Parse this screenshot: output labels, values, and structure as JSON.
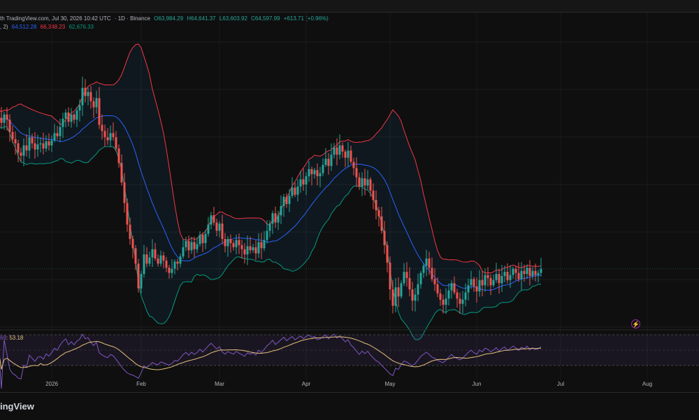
{
  "header": {
    "line1": {
      "source": "th TradingView.com, Jul 30, 2026 10:42 UTC",
      "symbol": "· 1D · Binance",
      "open": "O63,984.29",
      "high": "H64,641.37",
      "low": "L63,603.92",
      "close": "C64,597.99",
      "change": "+613.71 (+0.96%)"
    },
    "line2": {
      "params": ", 2)",
      "basis": "64,512.28",
      "upper": "66,348.23",
      "lower": "62,676.33"
    }
  },
  "rsi_legend": {
    "value_a": "69",
    "value_b": "53.18"
  },
  "footer": {
    "logo": "ingView"
  },
  "colors": {
    "up": "#26a69a",
    "down": "#ef5350",
    "basis": "#2962ff",
    "upper": "#f23645",
    "lower": "#089981",
    "rsi": "#7e57c2",
    "rsi_ma": "#e5c07b"
  },
  "chart_data": {
    "type": "candlestick",
    "x_ticks": [
      "2026",
      "Feb",
      "Mar",
      "Apr",
      "May",
      "Jun",
      "Jul",
      "Aug"
    ],
    "x_tick_index": [
      19,
      51,
      79,
      110,
      140,
      171,
      201,
      232
    ],
    "indicators": [
      "Bollinger Bands",
      "RSI"
    ],
    "rsi_range": [
      0,
      100
    ],
    "rsi_bands": [
      30,
      70
    ],
    "price_range": [
      54000,
      82000
    ],
    "closes": [
      74500,
      74000,
      74800,
      74300,
      73100,
      72400,
      72000,
      71100,
      70800,
      71800,
      71300,
      72600,
      72000,
      71400,
      71900,
      72000,
      71500,
      72200,
      71800,
      72300,
      73000,
      72700,
      73600,
      74400,
      75000,
      74100,
      74800,
      74300,
      75200,
      75700,
      77400,
      76600,
      77000,
      76100,
      75500,
      76400,
      73800,
      73200,
      72600,
      72300,
      73000,
      72600,
      71500,
      70100,
      68200,
      66200,
      64100,
      62700,
      61800,
      60300,
      57900,
      59300,
      61200,
      60300,
      60900,
      61700,
      60800,
      60300,
      61100,
      60600,
      59900,
      59400,
      59800,
      60500,
      60300,
      61000,
      61900,
      62500,
      61600,
      62400,
      61700,
      62200,
      63100,
      62300,
      63200,
      64100,
      65000,
      64300,
      63500,
      64200,
      62700,
      62000,
      62700,
      62300,
      61900,
      62600,
      62100,
      61700,
      61200,
      62000,
      61600,
      61900,
      61300,
      62400,
      61800,
      62600,
      63500,
      64200,
      65200,
      64300,
      65000,
      65900,
      66800,
      66100,
      66900,
      67700,
      67000,
      67800,
      68500,
      68000,
      68800,
      69500,
      69000,
      69400,
      68800,
      69100,
      69900,
      70500,
      69800,
      70900,
      71600,
      70900,
      71800,
      71200,
      70600,
      71300,
      70200,
      69600,
      68700,
      67800,
      68600,
      67900,
      68500,
      67400,
      66500,
      65500,
      64900,
      63500,
      62100,
      60400,
      57800,
      56200,
      58000,
      57100,
      58400,
      59500,
      58900,
      57800,
      56700,
      57300,
      58300,
      59400,
      60100,
      60800,
      59900,
      58800,
      58300,
      57400,
      56800,
      56300,
      56900,
      57700,
      58400,
      57500,
      56900,
      56400,
      56800,
      57500,
      58200,
      58800,
      58100,
      57600,
      58700,
      58200,
      59200,
      58900,
      58200,
      58700,
      59300,
      58400,
      59100,
      59500,
      58700,
      59200,
      59800,
      59400,
      58800,
      59600,
      59300,
      59900,
      59100,
      59600,
      59200,
      59400,
      59800
    ]
  }
}
